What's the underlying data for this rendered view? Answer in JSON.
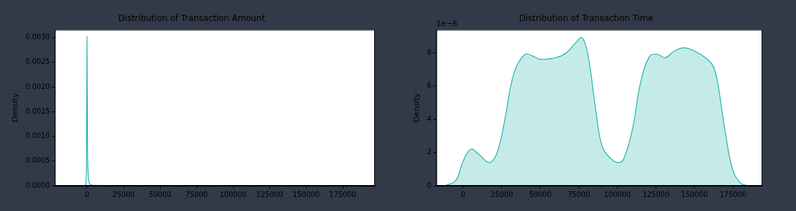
{
  "chart_data": [
    {
      "type": "line",
      "title": "Distribution of Transaction Amount",
      "y_label": "Density",
      "color": "#20b2aa",
      "grid": false,
      "x": [
        -2000,
        -800,
        -300,
        0,
        300,
        800,
        2000,
        5000,
        25000,
        190000
      ],
      "values": [
        0,
        1e-05,
        0.0008,
        0.00302,
        0.0012,
        0.0002,
        3e-05,
        1e-05,
        2e-06,
        0
      ],
      "xlim": [
        -22000,
        197000
      ],
      "xticks": [
        0,
        25000,
        50000,
        75000,
        100000,
        125000,
        150000,
        175000
      ],
      "ylim": [
        0,
        0.00316
      ],
      "yticks": [
        {
          "value": 0,
          "label": "0.0000"
        },
        {
          "value": 0.0005,
          "label": "0.0005"
        },
        {
          "value": 0.001,
          "label": "0.0010"
        },
        {
          "value": 0.0015,
          "label": "0.0015"
        },
        {
          "value": 0.002,
          "label": "0.0020"
        },
        {
          "value": 0.0025,
          "label": "0.0025"
        },
        {
          "value": 0.003,
          "label": "0.0030"
        }
      ]
    },
    {
      "type": "area",
      "title": "Distribution of Transaction Time",
      "y_label": "Density",
      "annotation": "1e−6",
      "color": "#20b2aa",
      "grid": false,
      "x": [
        -12000,
        -5000,
        0,
        5000,
        10000,
        17000,
        22000,
        27000,
        33000,
        40000,
        45000,
        50000,
        60000,
        67000,
        73000,
        77000,
        81000,
        86000,
        90000,
        95000,
        100000,
        104000,
        110000,
        115000,
        121000,
        126000,
        131000,
        137000,
        143000,
        150000,
        157000,
        162000,
        165000,
        170000,
        175000,
        180000,
        185000
      ],
      "values": [
        0,
        0.3,
        1.5,
        2.2,
        1.9,
        1.4,
        2.0,
        4.0,
        6.8,
        7.9,
        7.8,
        7.6,
        7.7,
        8.0,
        8.6,
        8.9,
        7.8,
        4.5,
        2.4,
        1.7,
        1.4,
        1.6,
        3.5,
        6.2,
        7.8,
        7.9,
        7.7,
        8.1,
        8.3,
        8.1,
        7.7,
        7.2,
        6.2,
        3.2,
        0.9,
        0.15,
        0
      ],
      "xlim": [
        -17500,
        194000
      ],
      "xticks": [
        0,
        25000,
        50000,
        75000,
        100000,
        125000,
        150000,
        175000
      ],
      "ylim": [
        0,
        9.38
      ],
      "yticks": [
        0,
        2,
        4,
        6,
        8
      ]
    }
  ]
}
